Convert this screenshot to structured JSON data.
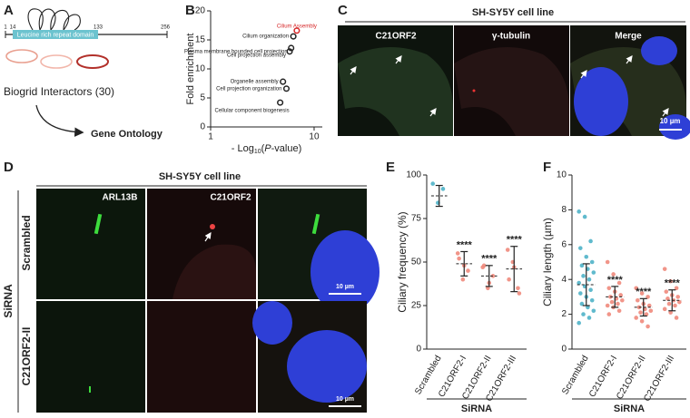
{
  "panel_a": {
    "label": "A",
    "positions": [
      "1",
      "14",
      "133",
      "256"
    ],
    "domain": "Leucine rich repeat domain",
    "interactors": "Biogrid Interactors (30)",
    "ontology": "Gene Ontology"
  },
  "panel_c": {
    "label": "C",
    "title": "SH-SY5Y cell line",
    "channels": [
      "C21ORF2",
      "γ-tubulin",
      "Merge"
    ],
    "scale_bar": "10 µm"
  },
  "panel_d": {
    "label": "D",
    "title": "SH-SY5Y cell line",
    "channels": [
      "ARL13B",
      "C21ORF2"
    ],
    "group": "SiRNA",
    "rows": [
      "Scrambled",
      "C21ORF2-II"
    ],
    "scale_bars": [
      "10 µm",
      "10 µm"
    ]
  },
  "chart_data": [
    {
      "type": "scatter",
      "panel_label": "B",
      "x_label": {
        "prefix": "- Log",
        "sub": "10",
        "open": "(",
        "italic": "P",
        "suffix": "-value)"
      },
      "y_label": "Fold enrichment",
      "x": [
        6.8,
        6.3,
        6.0,
        5.8,
        5.0,
        5.4,
        4.7
      ],
      "values": [
        16.6,
        15.6,
        13.6,
        13.0,
        7.8,
        6.6,
        4.2
      ],
      "point_labels": [
        "Cilium Assembly",
        "Cilium organization",
        "Plasma membrane bounded cell projection",
        "Cell projection assembly",
        "Organelle assembly",
        "Cell projection organization",
        "Cellular component biogenesis"
      ],
      "colors": [
        "#d62728",
        "#222222",
        "#222222",
        "#222222",
        "#222222",
        "#222222",
        "#222222"
      ],
      "log_x": true,
      "xlim": [
        1,
        12
      ],
      "ylim": [
        0,
        20
      ],
      "xticks": [
        1,
        10
      ],
      "yticks": [
        0,
        5,
        10,
        15,
        20
      ]
    },
    {
      "type": "dot_plot",
      "panel_label": "E",
      "y_label": "Ciliary frequency (%)",
      "x_group_label": "SiRNA",
      "categories": [
        "Scrambled",
        "C21ORF2-I",
        "C21ORF2-II",
        "C21ORF2-III"
      ],
      "points": [
        [
          95,
          84,
          92
        ],
        [
          55,
          40,
          45,
          52,
          48
        ],
        [
          47,
          35,
          42,
          48,
          38
        ],
        [
          57,
          50,
          35,
          40,
          47,
          32
        ]
      ],
      "means": [
        88,
        49,
        42,
        46
      ],
      "sd": [
        6,
        7,
        6,
        13
      ],
      "colors": [
        "#4fb3c8",
        "#ef8a7c",
        "#ef8a7c",
        "#ef8a7c"
      ],
      "significance": [
        null,
        "****",
        "****",
        "****"
      ],
      "ylim": [
        0,
        100
      ],
      "yticks": [
        0,
        25,
        50,
        75,
        100
      ]
    },
    {
      "type": "dot_plot",
      "panel_label": "F",
      "y_label": "Ciliary length (µm)",
      "x_group_label": "SiRNA",
      "categories": [
        "Scrambled",
        "C21ORF2-I",
        "C21ORF2-II",
        "C21ORF2-III"
      ],
      "points": [
        [
          7.9,
          7.6,
          6.2,
          5.8,
          5.3,
          5.0,
          4.8,
          4.6,
          4.4,
          4.2,
          4.0,
          3.8,
          3.6,
          3.4,
          3.2,
          3.0,
          2.8,
          2.6,
          2.4,
          2.2,
          2.0,
          1.8,
          1.5
        ],
        [
          5.0,
          4.3,
          3.8,
          3.5,
          3.3,
          3.1,
          3.0,
          2.9,
          2.8,
          2.7,
          2.6,
          2.5,
          2.4,
          2.2,
          2.0
        ],
        [
          3.5,
          3.2,
          3.0,
          2.8,
          2.6,
          2.5,
          2.4,
          2.3,
          2.2,
          2.1,
          2.0,
          1.8,
          1.6,
          1.3
        ],
        [
          4.6,
          3.9,
          3.5,
          3.3,
          3.1,
          3.0,
          2.9,
          2.8,
          2.7,
          2.6,
          2.5,
          2.3,
          2.1,
          1.8
        ]
      ],
      "means": [
        3.7,
        3.0,
        2.4,
        2.8
      ],
      "sd": [
        1.2,
        0.6,
        0.5,
        0.6
      ],
      "colors": [
        "#4fb3c8",
        "#ef8a7c",
        "#ef8a7c",
        "#ef8a7c"
      ],
      "significance": [
        null,
        "****",
        "****",
        "****"
      ],
      "ylim": [
        0,
        10
      ],
      "yticks": [
        0,
        2,
        4,
        6,
        8,
        10
      ]
    }
  ]
}
